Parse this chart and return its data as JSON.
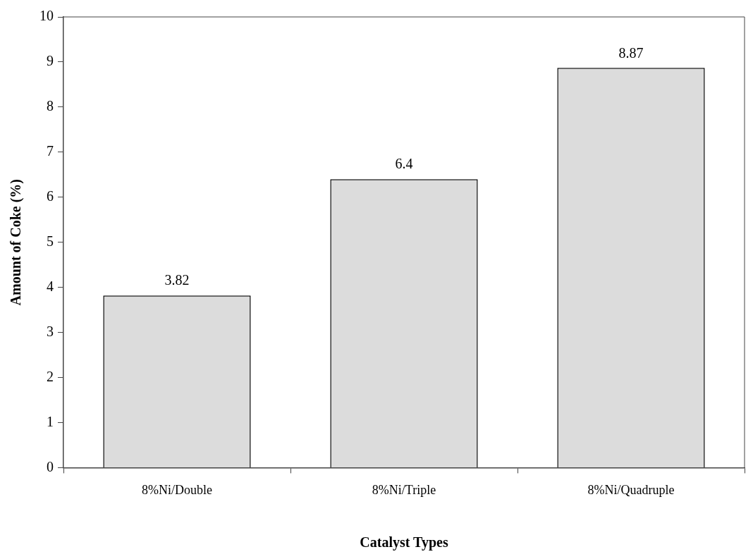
{
  "chart_data": {
    "type": "bar",
    "xlabel": "Catalyst Types",
    "ylabel": "Amount of Coke (%)",
    "categories": [
      "8%Ni/Double",
      "8%Ni/Triple",
      "8%Ni/Quadruple"
    ],
    "values": [
      3.82,
      6.4,
      8.87
    ],
    "color": "#dcdcdc",
    "ylim": [
      0,
      10
    ],
    "yticks": [
      0,
      1,
      2,
      3,
      4,
      5,
      6,
      7,
      8,
      9,
      10
    ],
    "grid": false,
    "legend": false,
    "data_labels": true
  }
}
